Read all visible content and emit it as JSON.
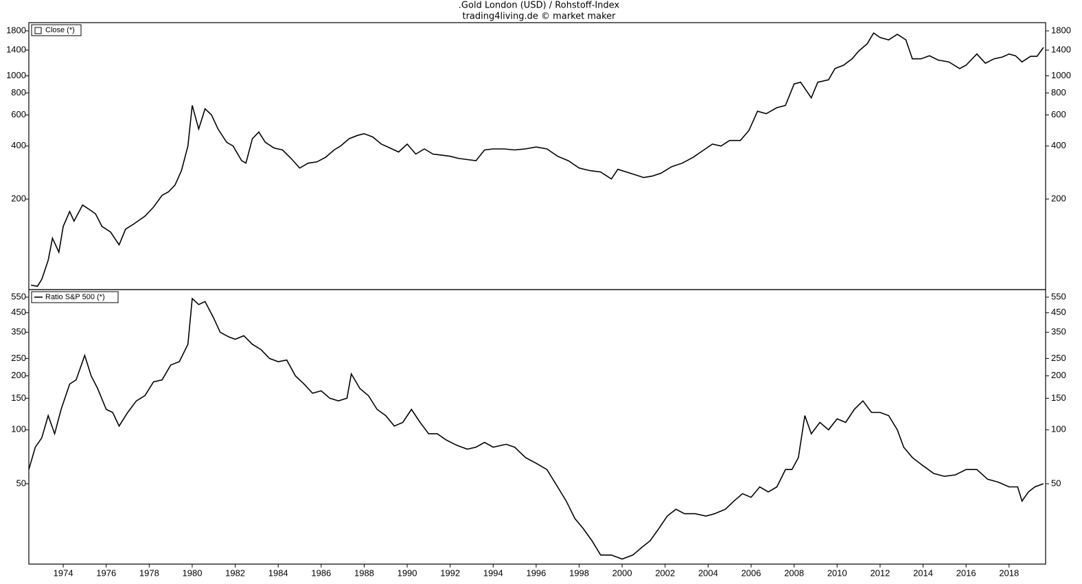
{
  "chart_data": [
    {
      "type": "line",
      "title": ".Gold London (USD) / Rohstoff-Index",
      "subtitle": "trading4living.de © market maker",
      "log_scale": true,
      "legend": "upper left",
      "x": [
        1972.5,
        1972.8,
        1973.0,
        1973.3,
        1973.5,
        1973.8,
        1974.0,
        1974.3,
        1974.5,
        1974.9,
        1975.2,
        1975.5,
        1975.8,
        1976.2,
        1976.6,
        1976.9,
        1977.3,
        1977.8,
        1978.2,
        1978.6,
        1978.9,
        1979.2,
        1979.5,
        1979.8,
        1980.0,
        1980.3,
        1980.6,
        1980.9,
        1981.2,
        1981.6,
        1981.9,
        1982.3,
        1982.5,
        1982.8,
        1983.1,
        1983.4,
        1983.8,
        1984.2,
        1984.6,
        1985.0,
        1985.4,
        1985.8,
        1986.2,
        1986.6,
        1986.9,
        1987.3,
        1987.7,
        1988.0,
        1988.4,
        1988.8,
        1989.2,
        1989.6,
        1990.0,
        1990.4,
        1990.8,
        1991.2,
        1991.6,
        1992.0,
        1992.4,
        1992.8,
        1993.2,
        1993.6,
        1994.0,
        1994.5,
        1995.0,
        1995.5,
        1996.0,
        1996.5,
        1997.0,
        1997.5,
        1998.0,
        1998.5,
        1999.0,
        1999.5,
        1999.8,
        2000.2,
        2000.6,
        2001.0,
        2001.4,
        2001.8,
        2002.3,
        2002.8,
        2003.3,
        2003.8,
        2004.2,
        2004.6,
        2005.0,
        2005.5,
        2005.9,
        2006.3,
        2006.7,
        2007.2,
        2007.6,
        2008.0,
        2008.3,
        2008.8,
        2009.1,
        2009.6,
        2009.9,
        2010.3,
        2010.7,
        2011.0,
        2011.4,
        2011.7,
        2012.0,
        2012.4,
        2012.8,
        2013.2,
        2013.5,
        2013.9,
        2014.3,
        2014.7,
        2015.2,
        2015.7,
        2016.0,
        2016.5,
        2016.9,
        2017.3,
        2017.7,
        2018.0,
        2018.3,
        2018.6,
        2019.0,
        2019.3,
        2019.6
      ],
      "series": [
        {
          "name": "Close (*)",
          "color": "#000000",
          "values": [
            65,
            64,
            70,
            90,
            120,
            100,
            140,
            170,
            150,
            185,
            175,
            165,
            140,
            130,
            110,
            135,
            145,
            160,
            180,
            210,
            220,
            240,
            290,
            400,
            680,
            500,
            650,
            600,
            500,
            420,
            400,
            330,
            320,
            440,
            480,
            420,
            390,
            380,
            340,
            300,
            320,
            325,
            345,
            380,
            400,
            440,
            460,
            470,
            450,
            410,
            390,
            370,
            410,
            360,
            385,
            360,
            355,
            350,
            340,
            335,
            330,
            380,
            385,
            385,
            380,
            385,
            395,
            385,
            350,
            330,
            300,
            290,
            285,
            260,
            295,
            285,
            275,
            265,
            270,
            280,
            305,
            320,
            345,
            380,
            410,
            400,
            430,
            430,
            490,
            630,
            610,
            660,
            680,
            900,
            920,
            750,
            920,
            950,
            1100,
            1150,
            1250,
            1380,
            1520,
            1750,
            1650,
            1600,
            1720,
            1600,
            1250,
            1250,
            1300,
            1230,
            1200,
            1100,
            1150,
            1330,
            1180,
            1250,
            1280,
            1330,
            1300,
            1200,
            1290,
            1290,
            1450
          ]
        }
      ],
      "xlim": [
        1972.4,
        2019.7
      ],
      "ylim": [
        61.3,
        2004
      ],
      "yticks": [
        200,
        400,
        600,
        800,
        1000,
        1400,
        1800
      ]
    },
    {
      "type": "line",
      "log_scale": true,
      "legend": "upper left",
      "x": [
        1972.4,
        1972.7,
        1973.0,
        1973.3,
        1973.6,
        1973.9,
        1974.3,
        1974.6,
        1975.0,
        1975.3,
        1975.6,
        1976.0,
        1976.3,
        1976.6,
        1977.0,
        1977.4,
        1977.8,
        1978.2,
        1978.6,
        1979.0,
        1979.4,
        1979.8,
        1980.0,
        1980.3,
        1980.6,
        1981.0,
        1981.3,
        1981.7,
        1982.0,
        1982.4,
        1982.8,
        1983.2,
        1983.6,
        1984.0,
        1984.4,
        1984.8,
        1985.2,
        1985.6,
        1986.0,
        1986.4,
        1986.8,
        1987.2,
        1987.4,
        1987.8,
        1988.2,
        1988.6,
        1989.0,
        1989.4,
        1989.8,
        1990.2,
        1990.6,
        1991.0,
        1991.4,
        1991.8,
        1992.3,
        1992.8,
        1993.2,
        1993.6,
        1994.0,
        1994.6,
        1995.0,
        1995.5,
        1996.0,
        1996.5,
        1997.0,
        1997.4,
        1997.8,
        1998.2,
        1998.6,
        1999.0,
        1999.5,
        2000.0,
        2000.5,
        2000.9,
        2001.3,
        2001.7,
        2002.1,
        2002.5,
        2002.9,
        2003.4,
        2003.9,
        2004.3,
        2004.8,
        2005.2,
        2005.6,
        2006.0,
        2006.4,
        2006.8,
        2007.2,
        2007.6,
        2007.9,
        2008.2,
        2008.5,
        2008.8,
        2009.2,
        2009.6,
        2010.0,
        2010.4,
        2010.8,
        2011.2,
        2011.6,
        2012.0,
        2012.4,
        2012.8,
        2013.1,
        2013.5,
        2014.0,
        2014.5,
        2015.0,
        2015.5,
        2016.0,
        2016.5,
        2017.0,
        2017.5,
        2018.0,
        2018.4,
        2018.6,
        2018.9,
        2019.2,
        2019.6
      ],
      "series": [
        {
          "name": "Ratio S&P 500 (*)",
          "color": "#000000",
          "values": [
            60,
            80,
            90,
            120,
            95,
            130,
            180,
            190,
            260,
            200,
            170,
            130,
            125,
            105,
            125,
            145,
            155,
            185,
            190,
            230,
            240,
            300,
            540,
            500,
            520,
            420,
            350,
            330,
            320,
            335,
            300,
            280,
            250,
            240,
            245,
            200,
            180,
            160,
            165,
            150,
            145,
            150,
            205,
            170,
            155,
            130,
            120,
            105,
            110,
            130,
            110,
            95,
            95,
            88,
            82,
            78,
            80,
            85,
            80,
            83,
            80,
            70,
            65,
            60,
            48,
            40,
            32,
            28,
            24,
            20,
            20,
            19,
            20,
            22,
            24,
            28,
            33,
            36,
            34,
            34,
            33,
            34,
            36,
            40,
            44,
            42,
            48,
            45,
            48,
            60,
            60,
            70,
            120,
            95,
            110,
            100,
            115,
            110,
            130,
            145,
            125,
            125,
            120,
            100,
            80,
            70,
            63,
            57,
            55,
            56,
            60,
            60,
            53,
            51,
            48,
            48,
            40,
            45,
            48,
            50
          ]
        }
      ],
      "xlim": [
        1972.4,
        2019.7
      ],
      "ylim": [
        17.8,
        606
      ],
      "yticks": [
        50,
        100,
        150,
        200,
        250,
        350,
        450,
        550
      ],
      "xticks": [
        1974,
        1976,
        1978,
        1980,
        1982,
        1984,
        1986,
        1988,
        1990,
        1992,
        1994,
        1996,
        1998,
        2000,
        2002,
        2004,
        2006,
        2008,
        2010,
        2012,
        2014,
        2016,
        2018
      ]
    }
  ]
}
